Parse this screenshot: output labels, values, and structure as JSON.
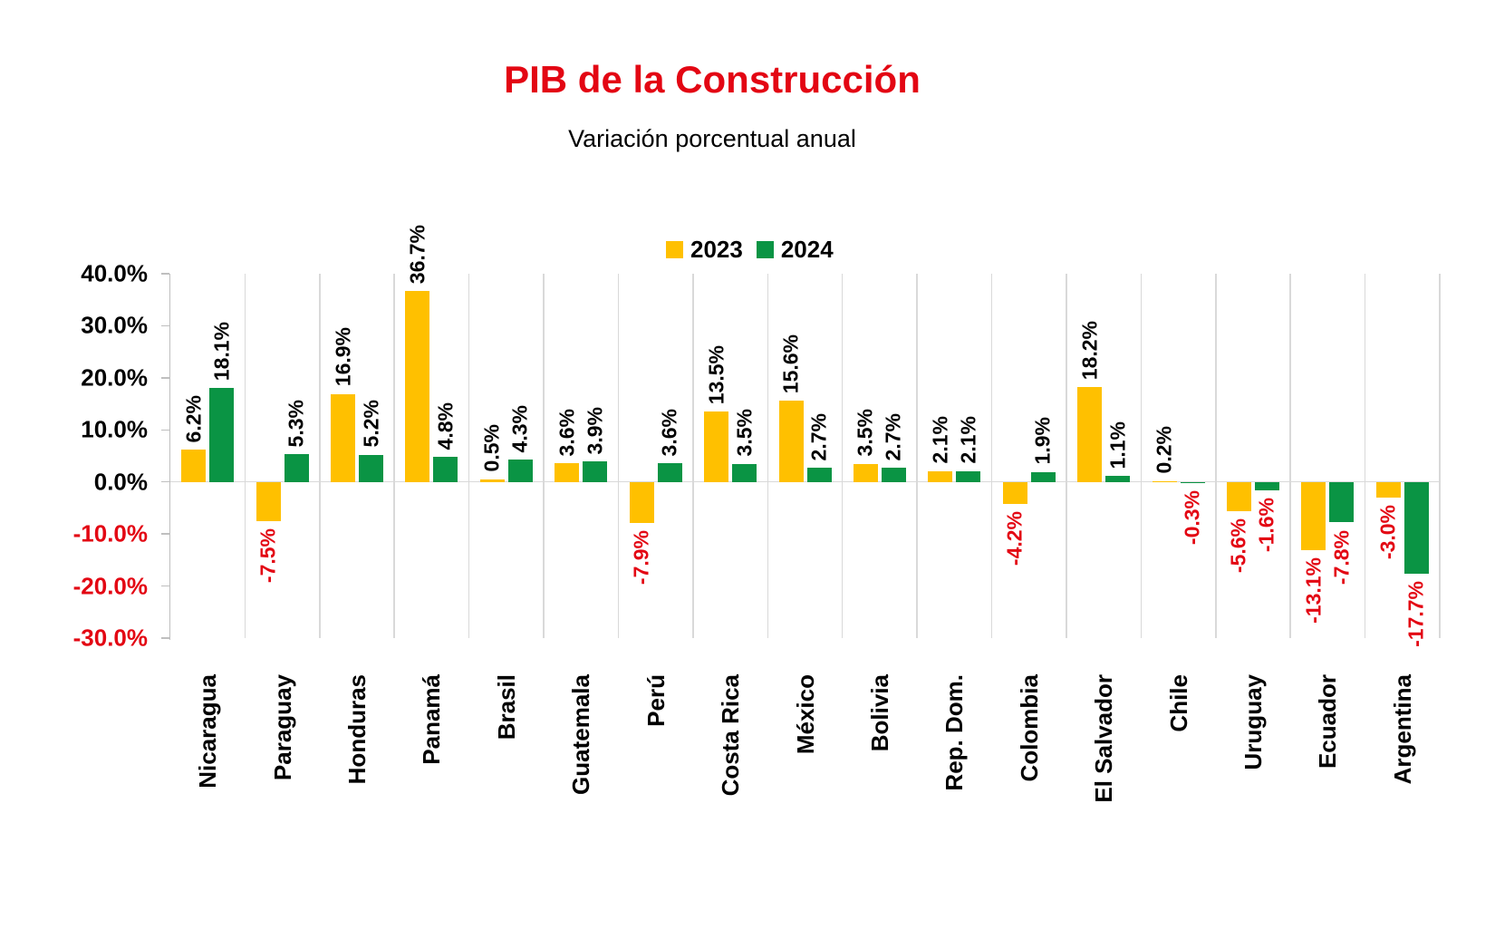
{
  "chart_data": {
    "type": "bar",
    "title": "PIB de la Construcción",
    "subtitle": "Variación porcentual anual",
    "categories": [
      "Nicaragua",
      "Paraguay",
      "Honduras",
      "Panamá",
      "Brasil",
      "Guatemala",
      "Perú",
      "Costa Rica",
      "México",
      "Bolivia",
      "Rep. Dom.",
      "Colombia",
      "El Salvador",
      "Chile",
      "Uruguay",
      "Ecuador",
      "Argentina"
    ],
    "series": [
      {
        "name": "2023",
        "color": "#ffc000",
        "values": [
          6.2,
          -7.5,
          16.9,
          36.7,
          0.5,
          3.6,
          -7.9,
          13.5,
          15.6,
          3.5,
          2.1,
          -4.2,
          18.2,
          0.2,
          -5.6,
          -13.1,
          -3.0
        ],
        "labels": [
          "6.2%",
          "-7.5%",
          "16.9%",
          "36.7%",
          "0.5%",
          "3.6%",
          "-7.9%",
          "13.5%",
          "15.6%",
          "3.5%",
          "2.1%",
          "-4.2%",
          "18.2%",
          "0.2%",
          "-5.6%",
          "-13.1%",
          "-3.0%"
        ]
      },
      {
        "name": "2024",
        "color": "#0a9444",
        "values": [
          18.1,
          5.3,
          5.2,
          4.8,
          4.3,
          3.9,
          3.6,
          3.5,
          2.7,
          2.7,
          2.1,
          1.9,
          1.1,
          -0.3,
          -1.6,
          -7.8,
          -17.7
        ],
        "labels": [
          "18.1%",
          "5.3%",
          "5.2%",
          "4.8%",
          "4.3%",
          "3.9%",
          "3.6%",
          "3.5%",
          "2.7%",
          "2.7%",
          "2.1%",
          "1.9%",
          "1.1%",
          "-0.3%",
          "-1.6%",
          "-7.8%",
          "-17.7%"
        ]
      }
    ],
    "y_axis": {
      "min": -30,
      "max": 40,
      "step": 10,
      "ticks": [
        "40.0%",
        "30.0%",
        "20.0%",
        "10.0%",
        "0.0%",
        "-10.0%",
        "-20.0%",
        "-30.0%"
      ]
    },
    "legend_position": "top",
    "gridlines": "vertical-between-categories",
    "colors": {
      "title": "#e30613",
      "positive_label": "#000000",
      "negative_label": "#e30613",
      "grid": "#d9d9d9",
      "axis": "#bfbfbf"
    }
  }
}
